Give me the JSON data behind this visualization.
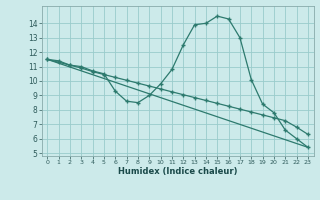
{
  "title": "",
  "xlabel": "Humidex (Indice chaleur)",
  "bg_color": "#cceaea",
  "grid_color": "#99cccc",
  "line_color": "#2d7a6e",
  "xlim": [
    -0.5,
    23.5
  ],
  "ylim": [
    4.8,
    15.2
  ],
  "yticks": [
    5,
    6,
    7,
    8,
    9,
    10,
    11,
    12,
    13,
    14
  ],
  "xticks": [
    0,
    1,
    2,
    3,
    4,
    5,
    6,
    7,
    8,
    9,
    10,
    11,
    12,
    13,
    14,
    15,
    16,
    17,
    18,
    19,
    20,
    21,
    22,
    23
  ],
  "line1_x": [
    0,
    1,
    2,
    3,
    4,
    5,
    6,
    7,
    8,
    9,
    10,
    11,
    12,
    13,
    14,
    15,
    16,
    17,
    18,
    19,
    20,
    21,
    22,
    23
  ],
  "line1_y": [
    11.5,
    11.4,
    11.1,
    11.0,
    10.7,
    10.5,
    9.3,
    8.6,
    8.5,
    9.0,
    9.8,
    10.8,
    12.5,
    13.9,
    14.0,
    14.5,
    14.3,
    13.0,
    10.1,
    8.4,
    7.8,
    6.6,
    6.0,
    5.4
  ],
  "line2_x": [
    0,
    23
  ],
  "line2_y": [
    11.5,
    5.4
  ],
  "line3_x": [
    0,
    1,
    2,
    3,
    4,
    5,
    6,
    7,
    8,
    9,
    10,
    11,
    12,
    13,
    14,
    15,
    16,
    17,
    18,
    19,
    20,
    21,
    22,
    23
  ],
  "line3_y": [
    11.5,
    11.3,
    11.1,
    10.9,
    10.65,
    10.45,
    10.25,
    10.05,
    9.85,
    9.65,
    9.45,
    9.25,
    9.05,
    8.85,
    8.65,
    8.45,
    8.25,
    8.05,
    7.85,
    7.65,
    7.45,
    7.25,
    6.8,
    6.3
  ]
}
